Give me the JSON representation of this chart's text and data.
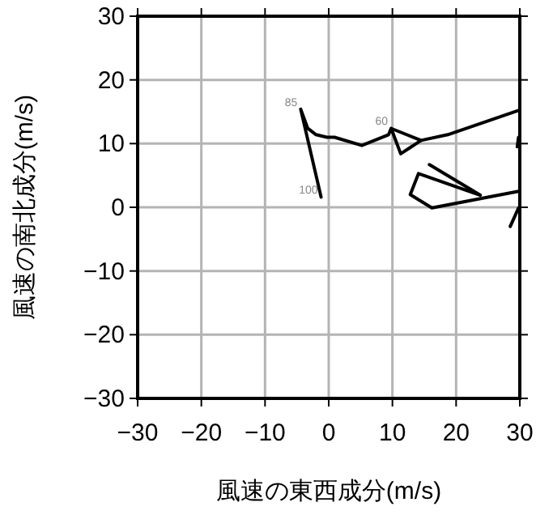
{
  "chart_data": {
    "type": "line",
    "xlabel": "風速の東西成分(m/s)",
    "ylabel": "風速の南北成分(m/s)",
    "xlim": [
      -30,
      30
    ],
    "ylim": [
      -30,
      30
    ],
    "xticks": [
      {
        "value": -30,
        "label": "−30"
      },
      {
        "value": -20,
        "label": "−20"
      },
      {
        "value": -10,
        "label": "−10"
      },
      0,
      10,
      20,
      30
    ],
    "yticks": [
      {
        "value": -30,
        "label": "−30"
      },
      {
        "value": -20,
        "label": "−20"
      },
      {
        "value": -10,
        "label": "−10"
      },
      0,
      10,
      20,
      30
    ],
    "grid": true,
    "marker": "none",
    "line_style": "solid",
    "series": [
      {
        "color": "#000000",
        "x": [
          -1.2,
          -4.4,
          -3.3,
          -2.0,
          -0.3,
          0.9,
          5.2,
          9.4,
          9.8,
          11.3,
          14.5,
          18.7,
          29.8
        ],
        "values": [
          1.6,
          15.4,
          12.4,
          11.4,
          11.0,
          11.0,
          9.7,
          11.4,
          12.4,
          8.4,
          10.5,
          11.4,
          15.2
        ]
      },
      {
        "color": "#000000",
        "x": [
          10.0,
          14.5
        ],
        "values": [
          12.3,
          10.5
        ]
      },
      {
        "color": "#000000",
        "x": [
          29.8,
          16.2,
          12.8,
          14.1,
          23.8,
          15.8
        ],
        "values": [
          2.5,
          -0.1,
          2.0,
          5.3,
          1.9,
          6.7
        ]
      },
      {
        "color": "#000000",
        "x": [
          29.6,
          29.8
        ],
        "values": [
          9.5,
          11.0
        ]
      },
      {
        "color": "#000000",
        "x": [
          29.8,
          28.5
        ],
        "values": [
          -0.1,
          -3.0
        ]
      }
    ],
    "annotations": [
      {
        "text": "100",
        "x": -1.2,
        "y": 1.6
      },
      {
        "text": "85",
        "x": -4.4,
        "y": 15.4
      },
      {
        "text": "60",
        "x": 9.8,
        "y": 12.4
      }
    ]
  }
}
